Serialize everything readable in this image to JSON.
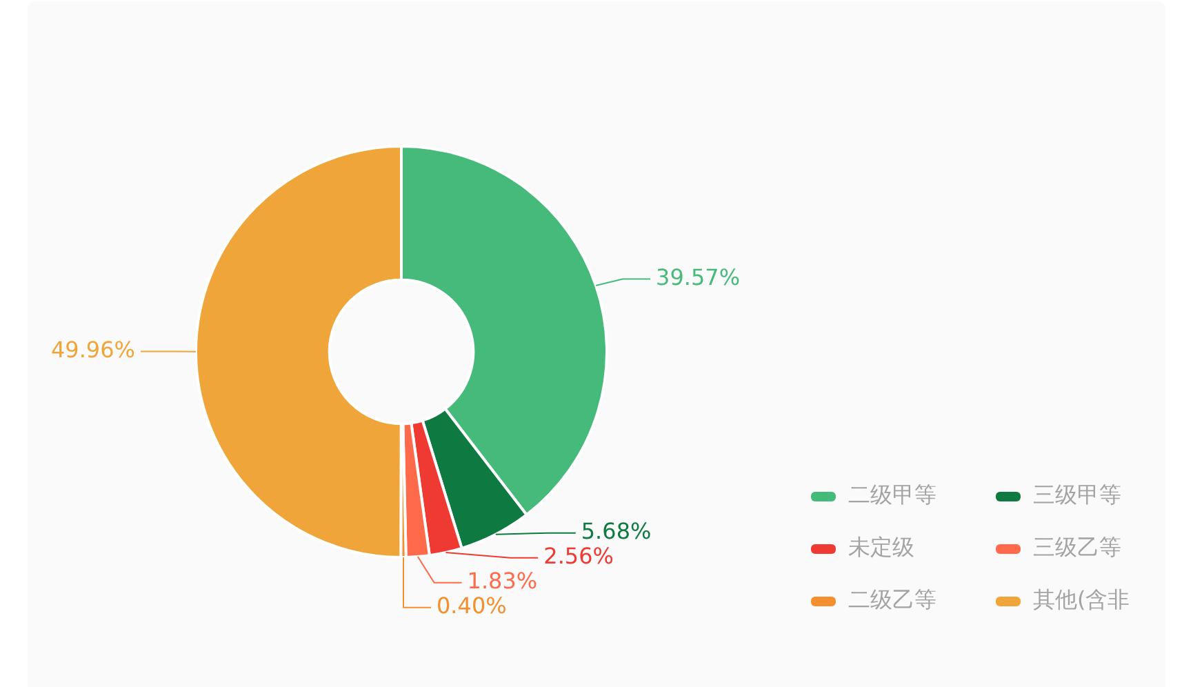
{
  "chart_data": {
    "type": "donut",
    "categories": [
      "二级甲等",
      "三级甲等",
      "未定级",
      "三级乙等",
      "二级乙等",
      "其他(含非"
    ],
    "values": [
      39.57,
      5.68,
      2.56,
      1.83,
      0.4,
      49.96
    ],
    "colors": [
      "#46ba7a",
      "#0e7a42",
      "#ee3a33",
      "#ff6a4b",
      "#f38f2f",
      "#efa53a"
    ],
    "value_labels": [
      "39.57%",
      "5.68%",
      "2.56%",
      "1.83%",
      "0.40%",
      "49.96%"
    ],
    "legend": "bottom right"
  }
}
